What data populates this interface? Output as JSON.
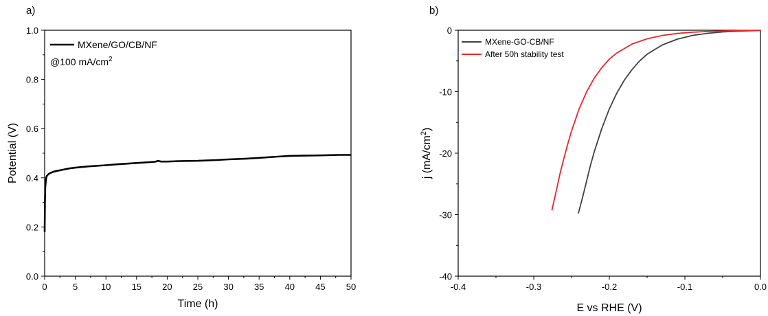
{
  "chart_data": [
    {
      "panel_label": "a)",
      "type": "line",
      "xlabel": "Time (h)",
      "ylabel": "Potential (V)",
      "xlim": [
        0,
        50
      ],
      "ylim": [
        0.0,
        1.0
      ],
      "x_ticks": [
        0,
        5,
        10,
        15,
        20,
        25,
        30,
        35,
        40,
        45,
        50
      ],
      "x_tick_labels": [
        "0",
        "5",
        "10",
        "15",
        "20",
        "25",
        "30",
        "35",
        "40",
        "45",
        "50"
      ],
      "y_ticks": [
        0.0,
        0.2,
        0.4,
        0.6,
        0.8,
        1.0
      ],
      "y_tick_labels": [
        "0.0",
        "0.2",
        "0.4",
        "0.6",
        "0.8",
        "1.0"
      ],
      "legend_position": "top-left",
      "annotation": "@100 mA/cm",
      "annotation_superscript": "2",
      "grid": false,
      "series": [
        {
          "name": "MXene/GO/CB/NF",
          "color": "#000000",
          "x": [
            0,
            0.02,
            0.05,
            0.1,
            0.2,
            0.3,
            0.5,
            0.8,
            1,
            1.5,
            2,
            3,
            4,
            5,
            7,
            10,
            12,
            15,
            18,
            18.5,
            19,
            20,
            22,
            25,
            28,
            30,
            33,
            35,
            38,
            40,
            42,
            45,
            48,
            50
          ],
          "y": [
            0.18,
            0.24,
            0.3,
            0.36,
            0.39,
            0.405,
            0.412,
            0.418,
            0.42,
            0.425,
            0.428,
            0.433,
            0.438,
            0.441,
            0.446,
            0.451,
            0.455,
            0.46,
            0.465,
            0.469,
            0.466,
            0.466,
            0.468,
            0.469,
            0.472,
            0.475,
            0.478,
            0.481,
            0.486,
            0.489,
            0.49,
            0.491,
            0.493,
            0.493
          ]
        }
      ]
    },
    {
      "panel_label": "b)",
      "type": "line",
      "xlabel": "E vs RHE (V)",
      "ylabel": "j (mA/cm",
      "ylabel_superscript": "2",
      "ylabel_suffix": ")",
      "xlim": [
        -0.4,
        0.0
      ],
      "ylim": [
        -40,
        0
      ],
      "x_ticks": [
        -0.4,
        -0.3,
        -0.2,
        -0.1,
        0.0
      ],
      "x_tick_labels": [
        "-0.4",
        "-0.3",
        "-0.2",
        "-0.1",
        "0.0"
      ],
      "y_ticks": [
        -40,
        -30,
        -20,
        -10,
        0
      ],
      "y_tick_labels": [
        "-40",
        "-30",
        "-20",
        "-10",
        "0"
      ],
      "legend_position": "top-left",
      "grid": false,
      "series": [
        {
          "name": "MXene-GO-CB/NF",
          "color": "#404040",
          "x": [
            -0.241,
            -0.235,
            -0.23,
            -0.225,
            -0.22,
            -0.21,
            -0.2,
            -0.19,
            -0.18,
            -0.17,
            -0.16,
            -0.15,
            -0.13,
            -0.11,
            -0.09,
            -0.07,
            -0.05,
            -0.03,
            0.0
          ],
          "y": [
            -29.8,
            -27.0,
            -24.5,
            -22.0,
            -19.8,
            -16.0,
            -12.8,
            -10.2,
            -8.1,
            -6.4,
            -5.0,
            -3.9,
            -2.4,
            -1.45,
            -0.85,
            -0.5,
            -0.28,
            -0.15,
            -0.05
          ]
        },
        {
          "name": "After 50h stability test",
          "color": "#e8262b",
          "x": [
            -0.276,
            -0.27,
            -0.265,
            -0.26,
            -0.255,
            -0.25,
            -0.24,
            -0.23,
            -0.22,
            -0.21,
            -0.2,
            -0.19,
            -0.17,
            -0.15,
            -0.13,
            -0.11,
            -0.09,
            -0.07,
            -0.05,
            -0.03,
            0.0
          ],
          "y": [
            -29.3,
            -26.0,
            -23.2,
            -20.8,
            -18.5,
            -16.4,
            -12.8,
            -10.0,
            -7.8,
            -6.1,
            -4.7,
            -3.7,
            -2.25,
            -1.4,
            -0.85,
            -0.52,
            -0.32,
            -0.2,
            -0.12,
            -0.07,
            -0.02
          ]
        }
      ]
    }
  ]
}
